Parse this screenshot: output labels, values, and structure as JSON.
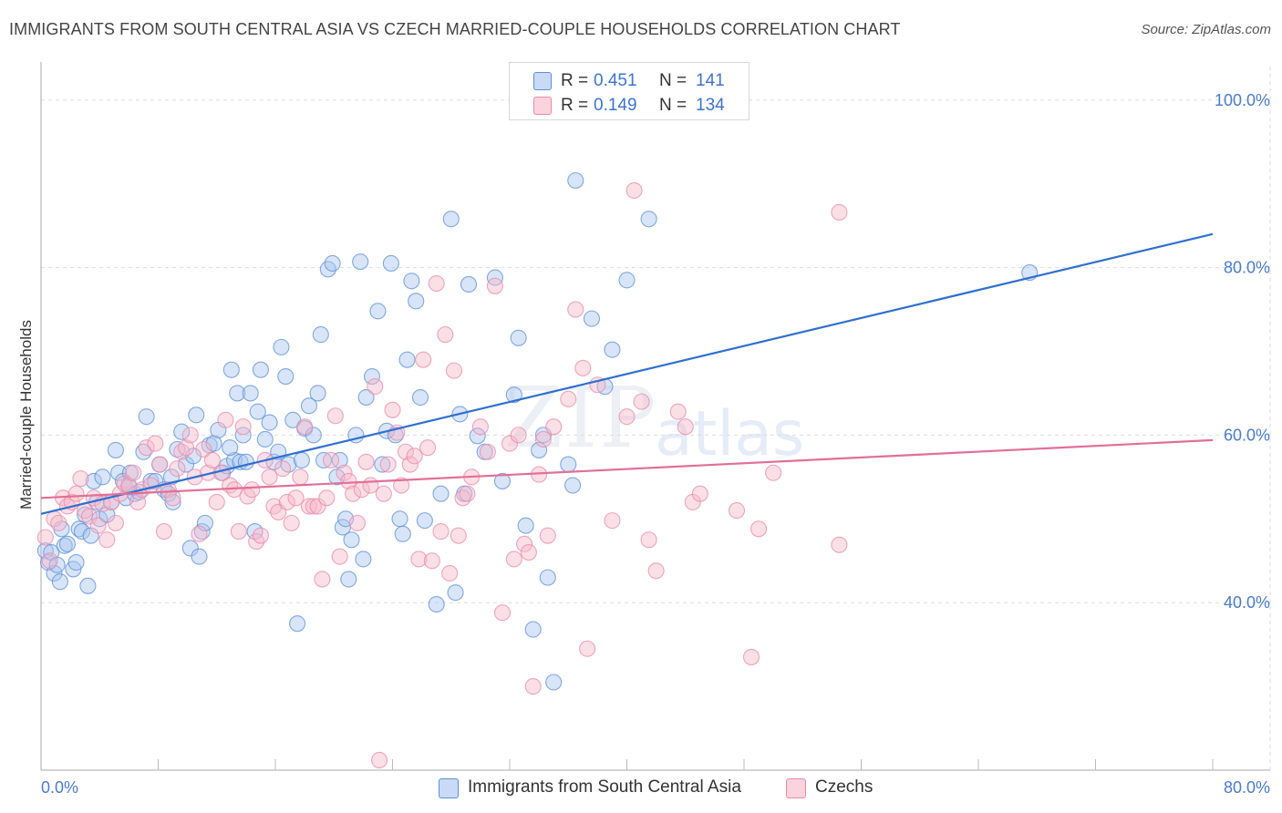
{
  "header": {
    "title": "IMMIGRANTS FROM SOUTH CENTRAL ASIA VS CZECH MARRIED-COUPLE HOUSEHOLDS CORRELATION CHART",
    "source": "Source: ZipAtlas.com"
  },
  "watermark": {
    "zip": "ZIP",
    "atlas": "atlas"
  },
  "legend": {
    "rows": [
      {
        "r_label": "R = ",
        "r_value": "0.451",
        "n_label": "N = ",
        "n_value": "141",
        "color": "#a8c6f0"
      },
      {
        "r_label": "R = ",
        "r_value": "0.149",
        "n_label": "N = ",
        "n_value": "134",
        "color": "#f6b8ca"
      }
    ]
  },
  "bottom_legend": {
    "blue_label": "Immigrants from South Central Asia",
    "pink_label": "Czechs"
  },
  "colors": {
    "blue_fill": "#a8c6f0",
    "blue_stroke": "#5b8fd9",
    "blue_line": "#2f6fd0",
    "pink_fill": "#f6b8ca",
    "pink_stroke": "#e98aa8",
    "pink_line": "#e26f96",
    "grid": "#dddddd",
    "tick_text": "#4a7bd0"
  },
  "chart_data": {
    "type": "scatter",
    "title": "IMMIGRANTS FROM SOUTH CENTRAL ASIA VS CZECH MARRIED-COUPLE HOUSEHOLDS CORRELATION CHART",
    "xlabel": "",
    "ylabel": "Married-couple Households",
    "xlim": [
      0,
      80
    ],
    "ylim": [
      20,
      104
    ],
    "x_tick_labels": [
      {
        "value": 0,
        "label": "0.0%"
      },
      {
        "value": 80,
        "label": "80.0%"
      }
    ],
    "y_tick_labels": [
      {
        "value": 40,
        "label": "40.0%"
      },
      {
        "value": 60,
        "label": "60.0%"
      },
      {
        "value": 80,
        "label": "80.0%"
      },
      {
        "value": 100,
        "label": "100.0%"
      }
    ],
    "grid": true,
    "legend_placement": "top-center",
    "series": [
      {
        "name": "Immigrants from South Central Asia",
        "color": "#a8c6f0",
        "trend": {
          "x": [
            0,
            80
          ],
          "y": [
            50.6,
            84.0
          ]
        },
        "points": [
          [
            0.3,
            46.2
          ],
          [
            0.5,
            44.8
          ],
          [
            0.7,
            46.0
          ],
          [
            0.9,
            43.5
          ],
          [
            1.1,
            44.5
          ],
          [
            1.3,
            42.5
          ],
          [
            1.4,
            48.8
          ],
          [
            1.6,
            46.8
          ],
          [
            1.8,
            47.0
          ],
          [
            2.2,
            44.0
          ],
          [
            2.4,
            44.8
          ],
          [
            2.6,
            48.8
          ],
          [
            2.8,
            48.5
          ],
          [
            3.0,
            50.5
          ],
          [
            3.2,
            42.0
          ],
          [
            3.4,
            48.0
          ],
          [
            3.6,
            54.5
          ],
          [
            3.8,
            52.0
          ],
          [
            4.0,
            50.0
          ],
          [
            4.2,
            55.0
          ],
          [
            4.5,
            50.5
          ],
          [
            4.8,
            52.0
          ],
          [
            5.1,
            58.2
          ],
          [
            5.3,
            55.5
          ],
          [
            5.6,
            54.5
          ],
          [
            5.8,
            52.5
          ],
          [
            6.1,
            55.5
          ],
          [
            6.4,
            53.0
          ],
          [
            6.7,
            53.2
          ],
          [
            7.0,
            58.0
          ],
          [
            7.2,
            62.2
          ],
          [
            7.5,
            54.5
          ],
          [
            7.8,
            54.5
          ],
          [
            8.1,
            56.5
          ],
          [
            8.4,
            53.5
          ],
          [
            8.7,
            53.0
          ],
          [
            9.0,
            52.0
          ],
          [
            9.3,
            58.3
          ],
          [
            9.6,
            60.4
          ],
          [
            9.9,
            56.5
          ],
          [
            10.2,
            46.5
          ],
          [
            10.4,
            57.5
          ],
          [
            10.6,
            62.4
          ],
          [
            10.8,
            45.5
          ],
          [
            11.0,
            48.5
          ],
          [
            11.2,
            49.5
          ],
          [
            11.5,
            58.8
          ],
          [
            11.8,
            59.0
          ],
          [
            12.1,
            60.6
          ],
          [
            12.4,
            55.5
          ],
          [
            12.7,
            56.3
          ],
          [
            13.0,
            67.8
          ],
          [
            13.2,
            57.0
          ],
          [
            13.4,
            65.0
          ],
          [
            13.6,
            56.8
          ],
          [
            13.8,
            60.0
          ],
          [
            14.0,
            56.8
          ],
          [
            14.3,
            65.0
          ],
          [
            14.6,
            48.5
          ],
          [
            14.8,
            62.8
          ],
          [
            15.0,
            67.8
          ],
          [
            15.3,
            59.5
          ],
          [
            15.6,
            61.5
          ],
          [
            15.9,
            56.8
          ],
          [
            16.2,
            58.0
          ],
          [
            16.4,
            70.5
          ],
          [
            16.7,
            67.0
          ],
          [
            16.9,
            56.5
          ],
          [
            17.2,
            61.8
          ],
          [
            17.5,
            37.5
          ],
          [
            17.8,
            57.0
          ],
          [
            18.0,
            60.8
          ],
          [
            18.3,
            63.5
          ],
          [
            18.6,
            60.0
          ],
          [
            18.9,
            65.0
          ],
          [
            19.1,
            72.0
          ],
          [
            19.3,
            57.0
          ],
          [
            19.6,
            79.8
          ],
          [
            19.9,
            80.5
          ],
          [
            20.2,
            55.0
          ],
          [
            20.4,
            57.0
          ],
          [
            20.6,
            49.0
          ],
          [
            20.8,
            50.0
          ],
          [
            21.0,
            42.8
          ],
          [
            21.2,
            47.5
          ],
          [
            21.5,
            60.0
          ],
          [
            21.8,
            80.7
          ],
          [
            22.0,
            45.2
          ],
          [
            22.2,
            64.5
          ],
          [
            22.6,
            67.0
          ],
          [
            23.0,
            74.8
          ],
          [
            23.3,
            56.5
          ],
          [
            23.6,
            60.5
          ],
          [
            23.9,
            80.5
          ],
          [
            24.2,
            60.0
          ],
          [
            24.5,
            50.0
          ],
          [
            24.7,
            48.2
          ],
          [
            25.0,
            69.0
          ],
          [
            25.3,
            78.4
          ],
          [
            25.6,
            76.0
          ],
          [
            25.9,
            64.5
          ],
          [
            26.2,
            49.8
          ],
          [
            27.0,
            39.8
          ],
          [
            27.3,
            53.0
          ],
          [
            28.0,
            85.8
          ],
          [
            28.3,
            41.2
          ],
          [
            28.6,
            62.5
          ],
          [
            28.9,
            53.0
          ],
          [
            29.2,
            78.0
          ],
          [
            29.8,
            59.9
          ],
          [
            30.3,
            58.0
          ],
          [
            31.0,
            78.8
          ],
          [
            31.5,
            54.5
          ],
          [
            32.3,
            64.8
          ],
          [
            32.6,
            71.6
          ],
          [
            33.1,
            49.2
          ],
          [
            33.6,
            36.8
          ],
          [
            34.0,
            58.2
          ],
          [
            34.3,
            60.0
          ],
          [
            34.6,
            43.0
          ],
          [
            35.0,
            30.5
          ],
          [
            36.0,
            56.5
          ],
          [
            36.3,
            54.0
          ],
          [
            36.5,
            90.4
          ],
          [
            37.6,
            73.9
          ],
          [
            38.5,
            65.8
          ],
          [
            39.0,
            70.2
          ],
          [
            40.0,
            78.5
          ],
          [
            41.5,
            85.8
          ],
          [
            67.5,
            79.4
          ],
          [
            8.9,
            55.0
          ],
          [
            6.0,
            53.8
          ],
          [
            12.9,
            58.5
          ]
        ]
      },
      {
        "name": "Czechs",
        "color": "#f6b8ca",
        "trend": {
          "x": [
            0,
            80
          ],
          "y": [
            52.5,
            59.4
          ]
        },
        "points": [
          [
            0.3,
            47.8
          ],
          [
            0.6,
            45.0
          ],
          [
            0.9,
            50.0
          ],
          [
            1.2,
            49.5
          ],
          [
            1.5,
            52.5
          ],
          [
            1.8,
            51.5
          ],
          [
            2.1,
            52.0
          ],
          [
            2.4,
            53.0
          ],
          [
            2.7,
            54.8
          ],
          [
            3.0,
            51.0
          ],
          [
            3.3,
            50.3
          ],
          [
            3.6,
            52.5
          ],
          [
            3.9,
            49.2
          ],
          [
            4.2,
            51.8
          ],
          [
            4.5,
            47.5
          ],
          [
            4.8,
            52.0
          ],
          [
            5.1,
            49.5
          ],
          [
            5.4,
            53.0
          ],
          [
            5.7,
            54.2
          ],
          [
            6.0,
            54.0
          ],
          [
            6.3,
            55.5
          ],
          [
            6.6,
            52.0
          ],
          [
            6.9,
            53.5
          ],
          [
            7.2,
            58.5
          ],
          [
            7.5,
            54.0
          ],
          [
            7.8,
            59.0
          ],
          [
            8.1,
            56.5
          ],
          [
            8.4,
            48.5
          ],
          [
            8.7,
            53.5
          ],
          [
            9.0,
            52.5
          ],
          [
            9.3,
            56.0
          ],
          [
            9.6,
            58.0
          ],
          [
            9.9,
            58.5
          ],
          [
            10.2,
            60.0
          ],
          [
            10.5,
            55.0
          ],
          [
            10.8,
            48.2
          ],
          [
            11.1,
            58.3
          ],
          [
            11.4,
            55.5
          ],
          [
            11.7,
            57.0
          ],
          [
            12.0,
            52.0
          ],
          [
            12.3,
            55.5
          ],
          [
            12.6,
            61.8
          ],
          [
            12.9,
            54.0
          ],
          [
            13.2,
            53.5
          ],
          [
            13.5,
            48.5
          ],
          [
            13.8,
            61.0
          ],
          [
            14.1,
            52.7
          ],
          [
            14.4,
            53.5
          ],
          [
            14.7,
            47.3
          ],
          [
            15.0,
            48.0
          ],
          [
            15.3,
            57.0
          ],
          [
            15.6,
            55.0
          ],
          [
            15.9,
            51.5
          ],
          [
            16.2,
            50.8
          ],
          [
            16.5,
            56.0
          ],
          [
            16.8,
            52.0
          ],
          [
            17.1,
            49.5
          ],
          [
            17.4,
            52.5
          ],
          [
            17.7,
            55.0
          ],
          [
            18.0,
            61.0
          ],
          [
            18.3,
            51.5
          ],
          [
            18.6,
            51.5
          ],
          [
            18.9,
            51.5
          ],
          [
            19.2,
            42.8
          ],
          [
            19.5,
            52.5
          ],
          [
            19.8,
            57.0
          ],
          [
            20.1,
            62.3
          ],
          [
            20.4,
            45.5
          ],
          [
            20.7,
            55.5
          ],
          [
            21.0,
            54.5
          ],
          [
            21.3,
            53.0
          ],
          [
            21.6,
            49.5
          ],
          [
            21.9,
            53.5
          ],
          [
            22.2,
            56.8
          ],
          [
            22.5,
            54.0
          ],
          [
            22.8,
            65.8
          ],
          [
            23.1,
            21.2
          ],
          [
            23.4,
            53.0
          ],
          [
            23.7,
            56.5
          ],
          [
            24.0,
            63.0
          ],
          [
            24.3,
            60.3
          ],
          [
            24.6,
            54.0
          ],
          [
            24.9,
            58.0
          ],
          [
            25.2,
            56.5
          ],
          [
            25.5,
            57.5
          ],
          [
            25.8,
            45.2
          ],
          [
            26.1,
            69.0
          ],
          [
            26.4,
            58.5
          ],
          [
            26.7,
            45.0
          ],
          [
            27.0,
            78.1
          ],
          [
            27.3,
            48.5
          ],
          [
            27.6,
            72.0
          ],
          [
            27.9,
            43.5
          ],
          [
            28.2,
            67.7
          ],
          [
            28.5,
            48.0
          ],
          [
            28.8,
            52.5
          ],
          [
            29.1,
            53.0
          ],
          [
            29.4,
            55.0
          ],
          [
            30.0,
            61.0
          ],
          [
            30.5,
            58.0
          ],
          [
            31.0,
            77.8
          ],
          [
            31.5,
            38.8
          ],
          [
            32.0,
            59.0
          ],
          [
            32.3,
            45.2
          ],
          [
            32.6,
            60.0
          ],
          [
            33.0,
            47.0
          ],
          [
            33.3,
            46.0
          ],
          [
            33.6,
            30.0
          ],
          [
            34.0,
            55.3
          ],
          [
            34.3,
            59.5
          ],
          [
            34.6,
            48.0
          ],
          [
            35.0,
            61.0
          ],
          [
            36.0,
            64.3
          ],
          [
            36.5,
            75.0
          ],
          [
            37.0,
            68.0
          ],
          [
            38.0,
            66.0
          ],
          [
            39.0,
            49.8
          ],
          [
            40.0,
            62.2
          ],
          [
            40.5,
            89.2
          ],
          [
            41.0,
            64.0
          ],
          [
            41.5,
            47.5
          ],
          [
            42.0,
            43.8
          ],
          [
            43.5,
            62.8
          ],
          [
            44.0,
            61.0
          ],
          [
            44.5,
            52.0
          ],
          [
            45.0,
            53.0
          ],
          [
            47.5,
            51.0
          ],
          [
            48.5,
            33.5
          ],
          [
            49.0,
            48.8
          ],
          [
            50.0,
            55.5
          ],
          [
            54.5,
            86.6
          ],
          [
            54.5,
            46.9
          ],
          [
            37.3,
            34.5
          ]
        ]
      }
    ]
  }
}
